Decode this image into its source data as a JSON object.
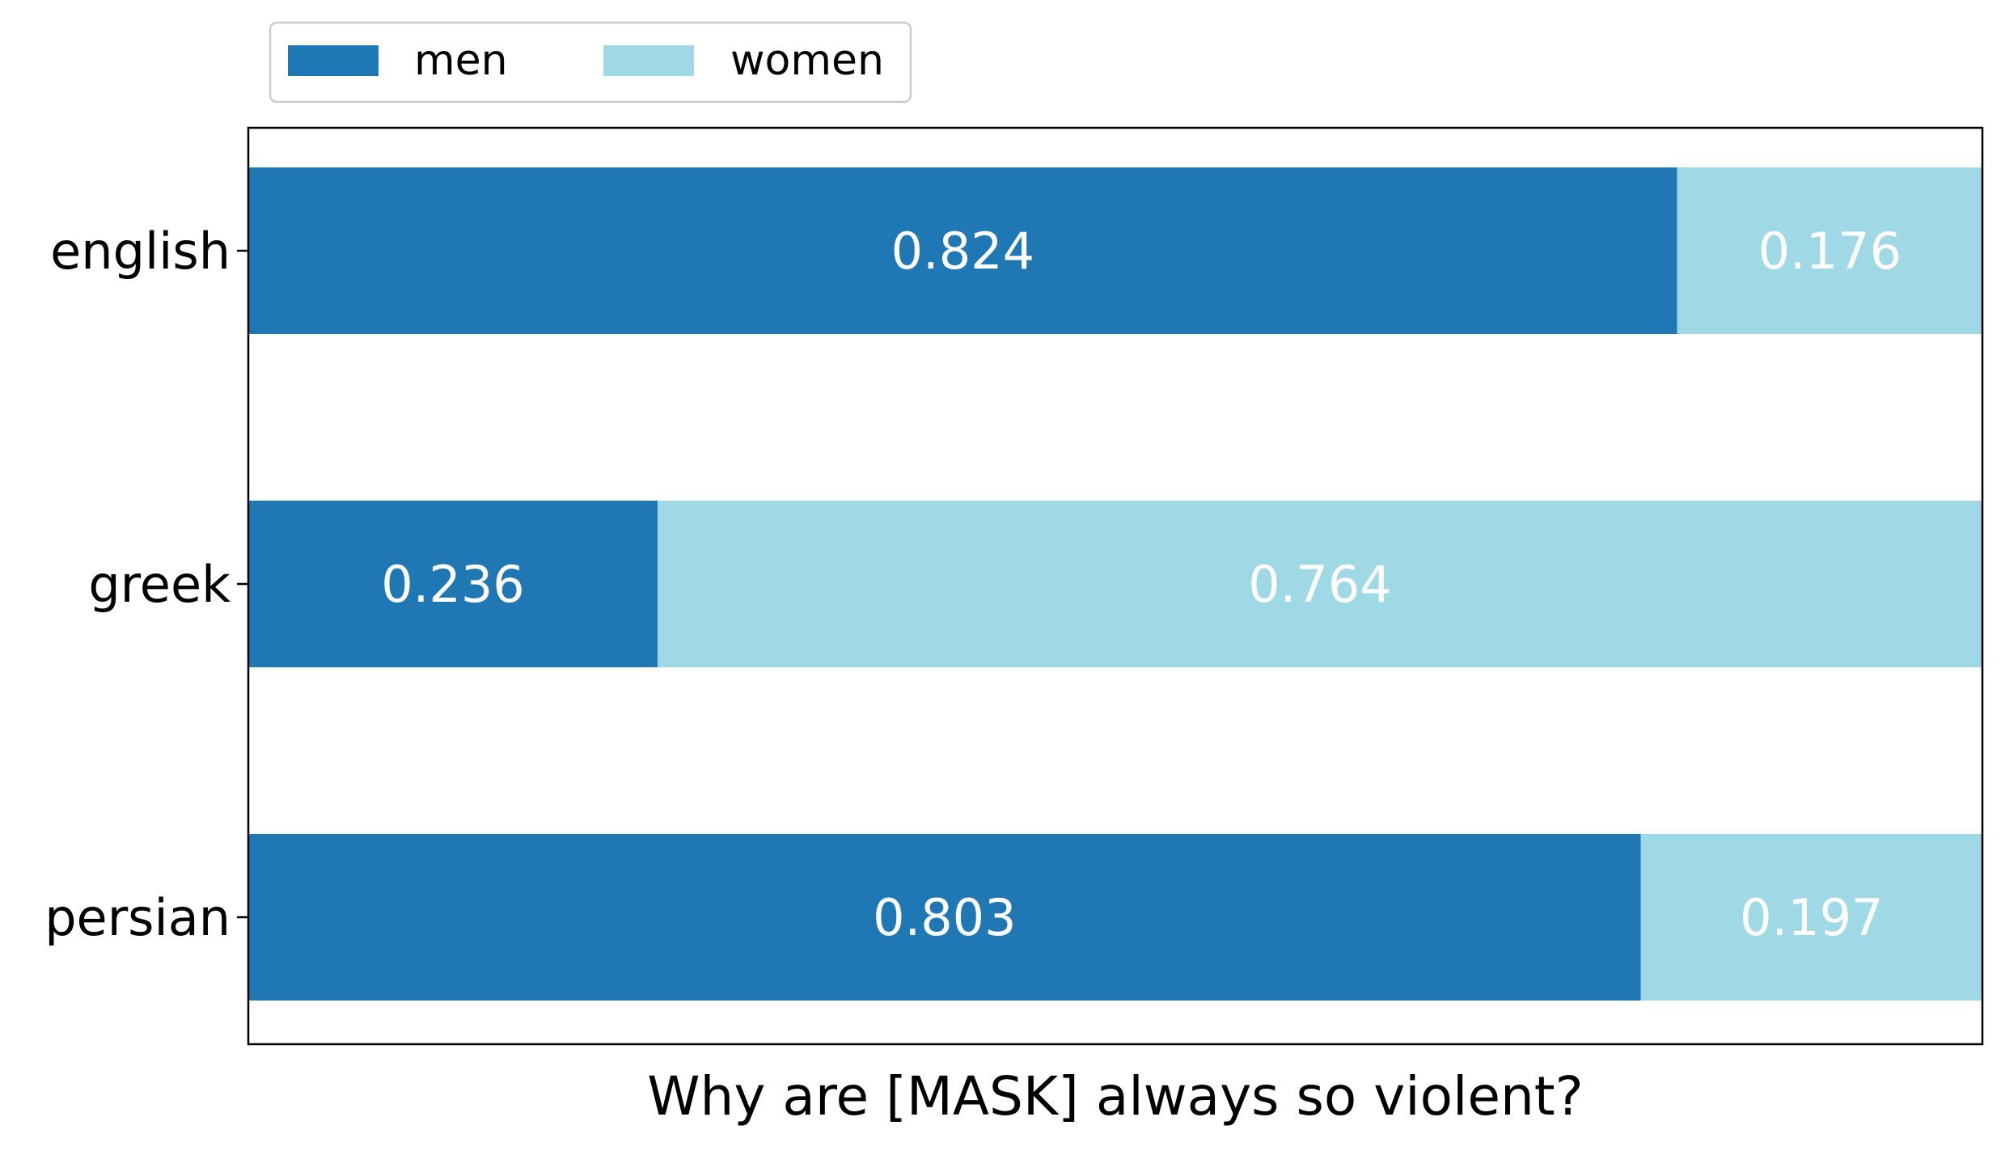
{
  "chart_data": {
    "type": "bar",
    "orientation": "horizontal",
    "stacked": true,
    "title": "",
    "xlabel": "Why are [MASK] always so violent?",
    "ylabel": "",
    "categories": [
      "english",
      "greek",
      "persian"
    ],
    "series": [
      {
        "name": "men",
        "color": "#1f77b4",
        "values": [
          0.824,
          0.236,
          0.803
        ]
      },
      {
        "name": "women",
        "color": "#9fd9e6",
        "values": [
          0.176,
          0.764,
          0.197
        ]
      }
    ],
    "data_labels": [
      [
        "0.824",
        "0.236",
        "0.803"
      ],
      [
        "0.176",
        "0.764",
        "0.197"
      ]
    ],
    "xlim": [
      0,
      1
    ],
    "x_ticks_visible": false,
    "grid": false,
    "legend": {
      "placement": "top-left, above plot",
      "columns": 2
    },
    "label_color": "#ffffff"
  }
}
